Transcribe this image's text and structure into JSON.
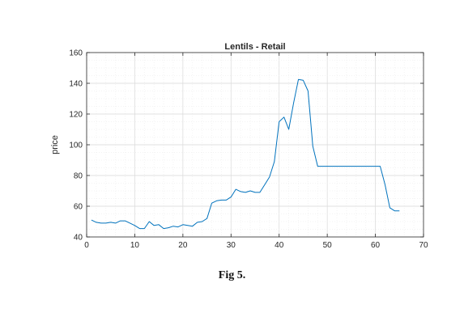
{
  "caption": "Fig 5.",
  "chart_data": {
    "type": "line",
    "title": "Lentils - Retail",
    "xlabel": "",
    "ylabel": "price",
    "xlim": [
      0,
      70
    ],
    "ylim": [
      40,
      160
    ],
    "xticks": [
      0,
      10,
      20,
      30,
      40,
      50,
      60,
      70
    ],
    "yticks": [
      40,
      60,
      80,
      100,
      120,
      140,
      160
    ],
    "grid": true,
    "line_color": "#0072BD",
    "series": [
      {
        "x": [
          1,
          2,
          3,
          4,
          5,
          6,
          7,
          8,
          9,
          10,
          11,
          12,
          13,
          14,
          15,
          16,
          17,
          18,
          19,
          20,
          21,
          22,
          23,
          24,
          25,
          26,
          27,
          28,
          29,
          30,
          31,
          32,
          33,
          34,
          35,
          36,
          37,
          38,
          39,
          40,
          41,
          42,
          43,
          44,
          45,
          46,
          47,
          48,
          49,
          50,
          51,
          52,
          53,
          54,
          55,
          56,
          57,
          58,
          59,
          60,
          61,
          62,
          63,
          64,
          65
        ],
        "y": [
          51,
          49.5,
          49,
          49,
          49.5,
          49,
          50.5,
          50.5,
          49,
          47.5,
          45.5,
          45.5,
          50,
          47.5,
          48,
          45.5,
          46,
          47,
          46.5,
          48,
          47.5,
          47,
          49.5,
          50,
          52,
          62,
          63.5,
          64,
          64,
          66,
          71,
          69.5,
          69,
          70,
          69,
          69,
          74,
          79,
          89,
          115,
          118,
          110,
          127,
          142.5,
          142,
          135,
          99,
          86,
          86,
          86,
          86,
          86,
          86,
          86,
          86,
          86,
          86,
          86,
          86,
          86,
          86,
          74,
          59,
          57,
          57
        ]
      }
    ]
  }
}
